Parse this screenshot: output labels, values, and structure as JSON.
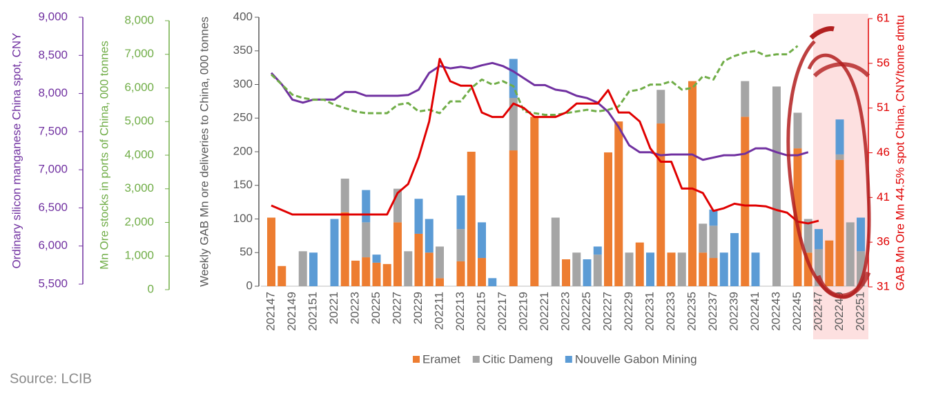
{
  "chart_data": {
    "type": "bar",
    "source": "Source: LCIB",
    "ylabel": "Weekly GAB Mn ore deliveries to China, 000 tonnes",
    "y2label": "GAB Mn Ore Mn 44.5% spot China, CNY/tonne dmtu",
    "y3label": "Ordinary silicon manganese China spot, CNY",
    "y4label": "Mn Ore stocks in ports of China, 000 tonnes",
    "categories": [
      "202147",
      null,
      "202149",
      null,
      "202151",
      null,
      "20221",
      null,
      "20223",
      null,
      "20225",
      null,
      "20227",
      null,
      "20229",
      null,
      "202211",
      null,
      "202213",
      null,
      "202215",
      null,
      "202217",
      null,
      "202219",
      null,
      "202221",
      null,
      "202223",
      null,
      "202225",
      null,
      "202227",
      null,
      "202229",
      null,
      "202231",
      null,
      "202233",
      null,
      "202235",
      null,
      "202237",
      null,
      "202239",
      null,
      "202241",
      null,
      "202243",
      null,
      "202245",
      null,
      "202247",
      null,
      "202249",
      null,
      "202251"
    ],
    "ylim": [
      0,
      400
    ],
    "yticks": [
      0,
      50,
      100,
      150,
      200,
      250,
      300,
      350,
      400
    ],
    "y2lim": [
      31,
      61
    ],
    "y2ticks": [
      31,
      36,
      41,
      46,
      51,
      56,
      61
    ],
    "y3lim": [
      5500,
      9000
    ],
    "y3ticks": [
      {
        "value": 5500,
        "label": "5,500"
      },
      {
        "value": 6000,
        "label": "6,000"
      },
      {
        "value": 6500,
        "label": "6,500"
      },
      {
        "value": 7000,
        "label": "7,000"
      },
      {
        "value": 7500,
        "label": "7,500"
      },
      {
        "value": 8000,
        "label": "8,000"
      },
      {
        "value": 8500,
        "label": "8,500"
      },
      {
        "value": 9000,
        "label": "9,000"
      }
    ],
    "y4lim": [
      0,
      8000
    ],
    "y4ticks": [
      0,
      {
        "value": 1000,
        "label": "1,000"
      },
      {
        "value": 2000,
        "label": "2,000"
      },
      {
        "value": 3000,
        "label": "3,000"
      },
      {
        "value": 4000,
        "label": "4,000"
      },
      {
        "value": 5000,
        "label": "5,000"
      },
      {
        "value": 6000,
        "label": "6,000"
      },
      {
        "value": 7000,
        "label": "7,000"
      },
      {
        "value": 8000,
        "label": "8,000"
      }
    ],
    "stacked": true,
    "series": [
      {
        "name": "Eramet",
        "type": "bar",
        "color": "#ED7D31",
        "axis": "y",
        "values": [
          102,
          30,
          0,
          0,
          0,
          0,
          0,
          110,
          38,
          43,
          35,
          33,
          95,
          0,
          78,
          50,
          12,
          0,
          37,
          200,
          42,
          0,
          0,
          202,
          0,
          252,
          0,
          0,
          40,
          0,
          0,
          0,
          199,
          245,
          0,
          65,
          0,
          242,
          50,
          0,
          305,
          50,
          42,
          0,
          0,
          252,
          0,
          0,
          0,
          0,
          205,
          50,
          0,
          68,
          188,
          0,
          0
        ]
      },
      {
        "name": "Citic Dameng",
        "type": "bar",
        "color": "#A5A5A5",
        "axis": "y",
        "values": [
          0,
          0,
          0,
          52,
          0,
          0,
          0,
          50,
          0,
          52,
          0,
          0,
          50,
          52,
          0,
          0,
          47,
          0,
          48,
          0,
          0,
          0,
          0,
          78,
          0,
          0,
          0,
          102,
          0,
          50,
          0,
          47,
          0,
          0,
          50,
          0,
          0,
          50,
          0,
          50,
          0,
          43,
          48,
          0,
          0,
          53,
          0,
          0,
          297,
          0,
          53,
          50,
          55,
          0,
          8,
          95,
          52
        ]
      },
      {
        "name": "Nouvelle Gabon Mining",
        "type": "bar",
        "color": "#5B9BD5",
        "axis": "y",
        "values": [
          0,
          0,
          0,
          0,
          50,
          0,
          100,
          0,
          0,
          48,
          12,
          0,
          0,
          0,
          52,
          50,
          0,
          0,
          50,
          0,
          53,
          12,
          0,
          58,
          0,
          0,
          0,
          0,
          0,
          0,
          40,
          12,
          0,
          0,
          0,
          0,
          50,
          0,
          0,
          0,
          0,
          0,
          24,
          50,
          79,
          0,
          50,
          0,
          0,
          0,
          0,
          0,
          30,
          0,
          52,
          0,
          50
        ]
      },
      {
        "type": "line",
        "color": "#7030A0",
        "axis": "y3",
        "values": [
          8270,
          8120,
          7920,
          7880,
          7920,
          7920,
          7920,
          8020,
          8020,
          7970,
          7970,
          7970,
          7970,
          7980,
          8050,
          8270,
          8360,
          8330,
          8350,
          8330,
          8370,
          8400,
          8360,
          8290,
          8200,
          8110,
          8110,
          8050,
          8030,
          7970,
          7940,
          7880,
          7760,
          7560,
          7320,
          7230,
          7230,
          7190,
          7200,
          7200,
          7200,
          7130,
          7160,
          7190,
          7190,
          7210,
          7280,
          7280,
          7230,
          7190,
          7190,
          7230,
          null,
          null,
          null,
          null,
          null
        ]
      },
      {
        "type": "line",
        "color": "#70AD47",
        "dashed": true,
        "axis": "y4",
        "values": [
          6400,
          6100,
          5800,
          5700,
          5650,
          5650,
          5500,
          5400,
          5300,
          5250,
          5250,
          5250,
          5500,
          5550,
          5300,
          5350,
          5250,
          5600,
          5600,
          6000,
          6250,
          6100,
          6200,
          6050,
          5300,
          5250,
          5200,
          5200,
          5250,
          5300,
          5350,
          5300,
          5350,
          5450,
          5900,
          5950,
          6100,
          6100,
          6200,
          5950,
          6000,
          6350,
          6250,
          6800,
          6950,
          7050,
          7100,
          6950,
          7000,
          7000,
          7250,
          null,
          null,
          null,
          null,
          null,
          null
        ]
      },
      {
        "type": "line",
        "color": "#E00000",
        "axis": "y2",
        "values": [
          40.1,
          39.6,
          39.1,
          39.1,
          39.1,
          39.1,
          39.1,
          39.1,
          39.1,
          39.1,
          39.1,
          39.1,
          41.5,
          42.5,
          45.5,
          49.5,
          56.5,
          54.0,
          53.5,
          53.5,
          50.5,
          50,
          50,
          51.5,
          51,
          50,
          50,
          50,
          50.5,
          51.5,
          51.5,
          51.5,
          53,
          50.5,
          50.5,
          49.5,
          46.5,
          45,
          45,
          42,
          42,
          41.5,
          39.5,
          39.8,
          40.3,
          40.1,
          40.1,
          40,
          39.6,
          39.3,
          38.3,
          38.1,
          38.4,
          null,
          null,
          null,
          null
        ]
      }
    ]
  }
}
